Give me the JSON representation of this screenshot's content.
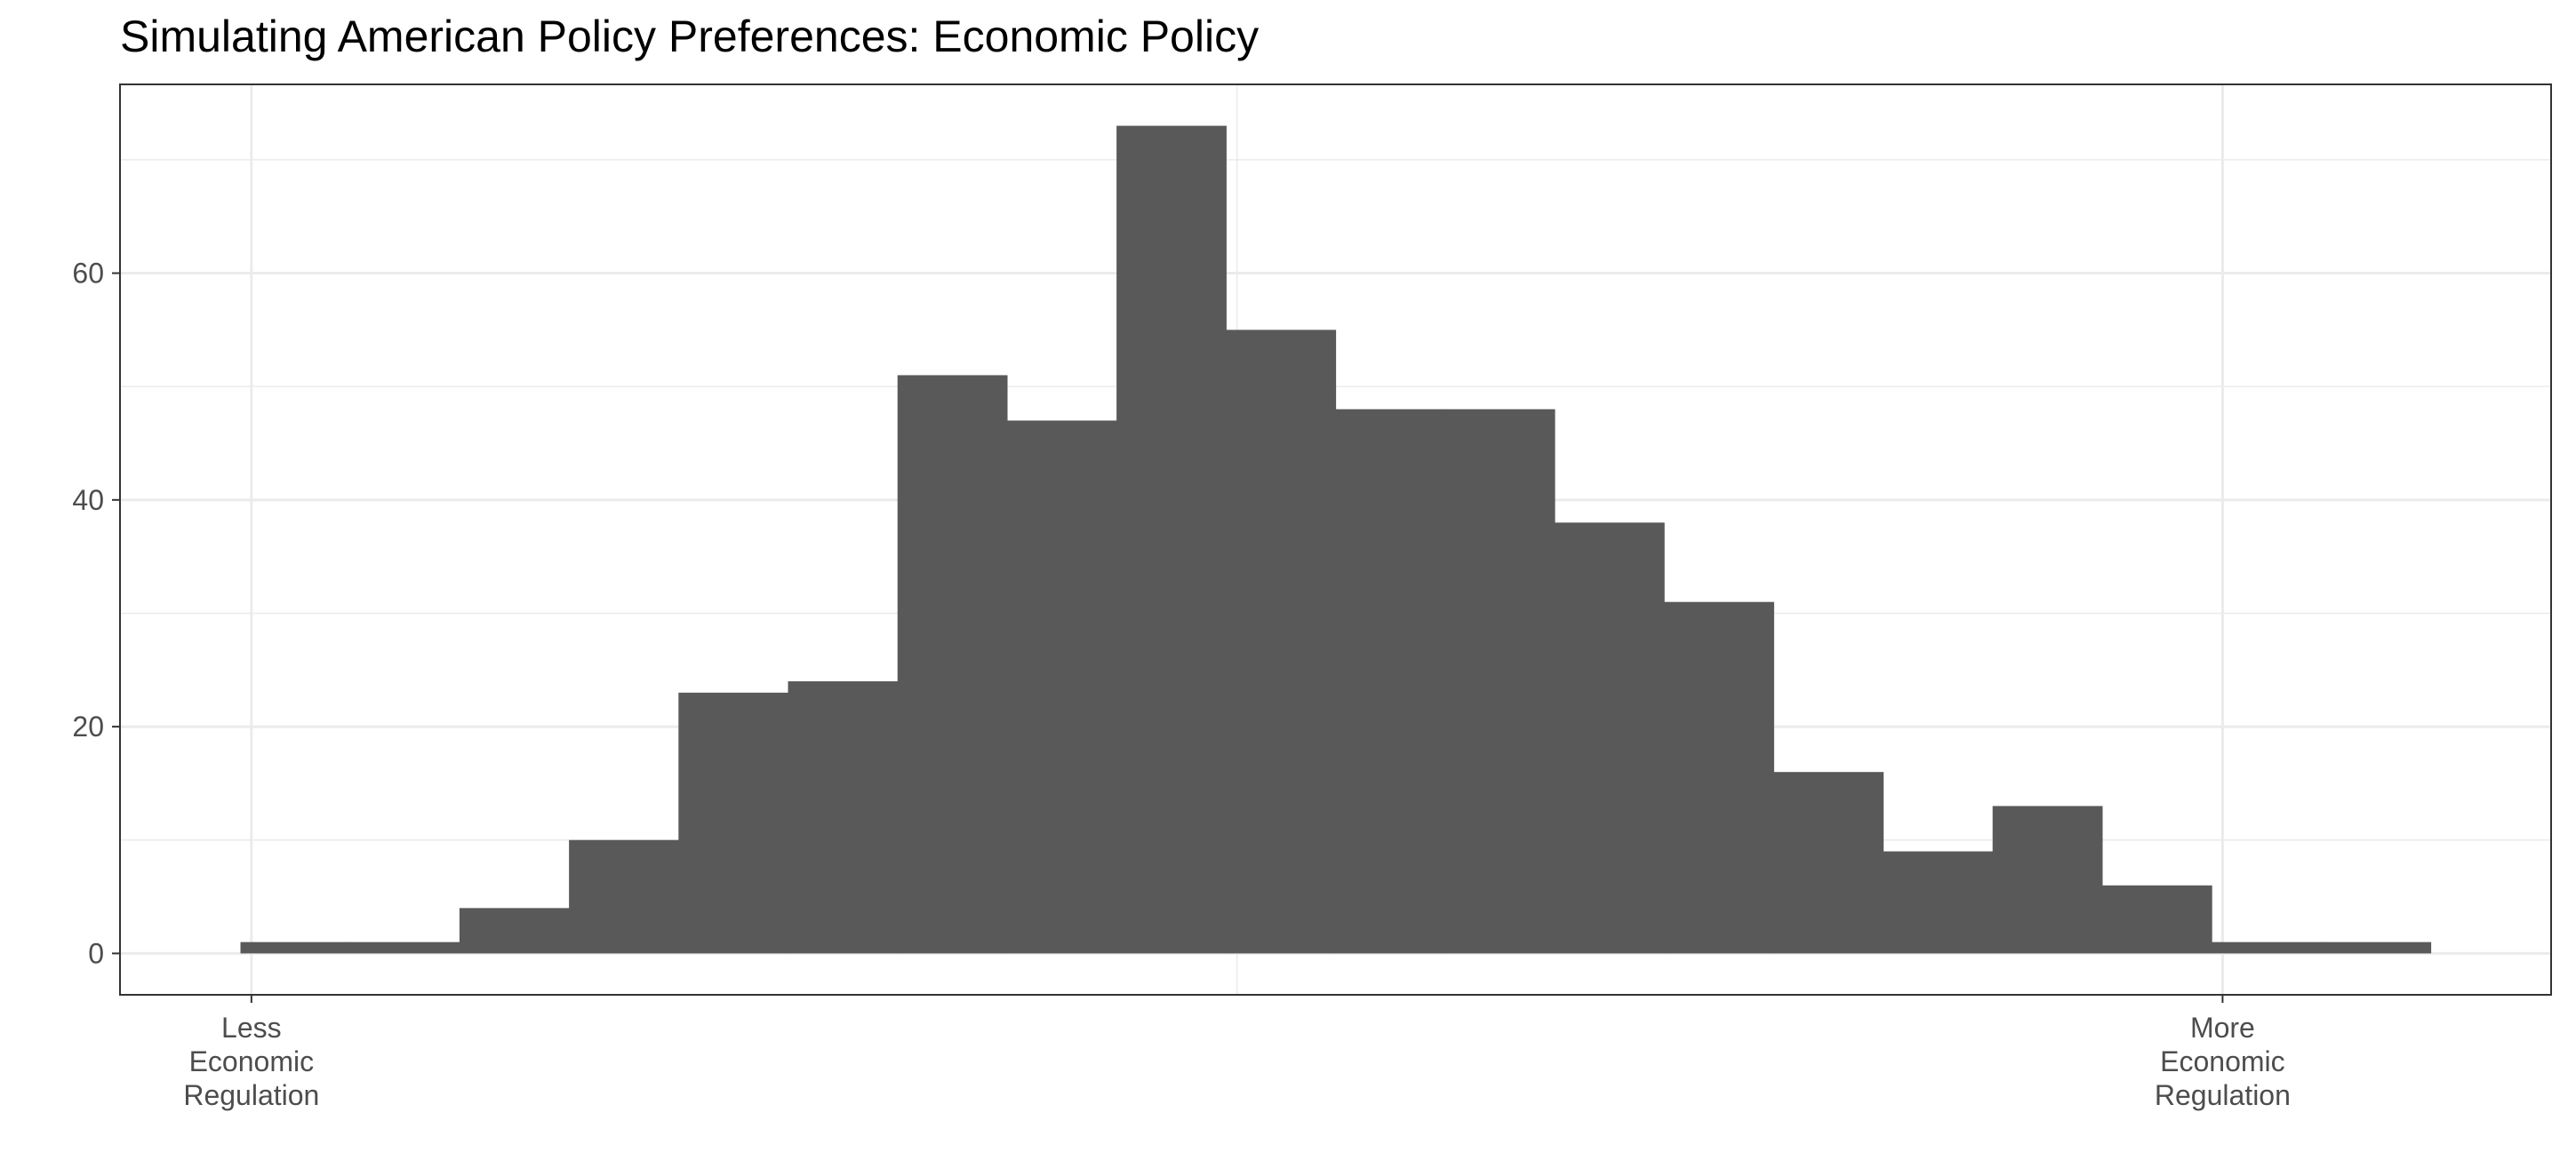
{
  "chart_data": {
    "type": "bar",
    "title": "Simulating American Policy Preferences: Economic Policy",
    "xlabel": "",
    "ylabel": "",
    "bins": [
      {
        "x0": 0.0,
        "x1": 0.5,
        "count": 1
      },
      {
        "x0": 0.5,
        "x1": 1.0,
        "count": 1
      },
      {
        "x0": 1.0,
        "x1": 1.5,
        "count": 4
      },
      {
        "x0": 1.5,
        "x1": 2.0,
        "count": 10
      },
      {
        "x0": 2.0,
        "x1": 2.5,
        "count": 23
      },
      {
        "x0": 2.5,
        "x1": 3.0,
        "count": 24
      },
      {
        "x0": 3.0,
        "x1": 3.5,
        "count": 51
      },
      {
        "x0": 3.5,
        "x1": 4.0,
        "count": 47
      },
      {
        "x0": 4.0,
        "x1": 4.5,
        "count": 73
      },
      {
        "x0": 4.5,
        "x1": 5.0,
        "count": 55
      },
      {
        "x0": 5.0,
        "x1": 5.5,
        "count": 48
      },
      {
        "x0": 5.5,
        "x1": 6.0,
        "count": 48
      },
      {
        "x0": 6.0,
        "x1": 6.5,
        "count": 38
      },
      {
        "x0": 6.5,
        "x1": 7.0,
        "count": 31
      },
      {
        "x0": 7.0,
        "x1": 7.5,
        "count": 16
      },
      {
        "x0": 7.5,
        "x1": 8.0,
        "count": 9
      },
      {
        "x0": 8.0,
        "x1": 8.5,
        "count": 13
      },
      {
        "x0": 8.5,
        "x1": 9.0,
        "count": 6
      },
      {
        "x0": 9.0,
        "x1": 9.5,
        "count": 1
      },
      {
        "x0": 9.5,
        "x1": 10.0,
        "count": 1
      }
    ],
    "xlim": [
      -0.55,
      10.55
    ],
    "ylim": [
      -3.65,
      76.65
    ],
    "y_ticks": [
      {
        "value": 0,
        "label": "0"
      },
      {
        "value": 20,
        "label": "20"
      },
      {
        "value": 40,
        "label": "40"
      },
      {
        "value": 60,
        "label": "60"
      }
    ],
    "y_minor_ticks": [
      10,
      30,
      50,
      70
    ],
    "x_ticks": [
      {
        "value": 0.05,
        "lines": [
          "Less",
          "Economic",
          "Regulation"
        ]
      },
      {
        "value": 9.05,
        "lines": [
          "More",
          "Economic",
          "Regulation"
        ]
      }
    ],
    "x_minor_ticks": [
      4.55
    ],
    "grid": true,
    "legend": "none",
    "colors": {
      "bar_fill": "#595959",
      "grid": "#ebebeb",
      "panel_border": "#333333",
      "axis_text": "#4d4d4d",
      "background": "#ffffff"
    }
  }
}
